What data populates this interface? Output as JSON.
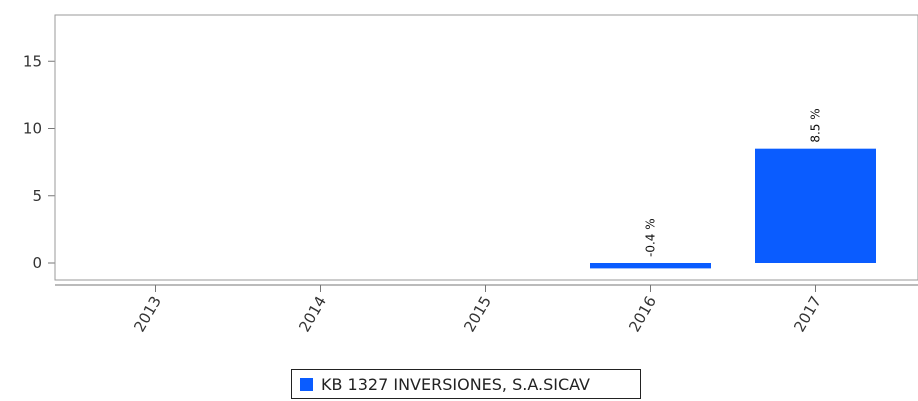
{
  "chart_data": {
    "type": "bar",
    "categories": [
      "2013",
      "2014",
      "2015",
      "2016",
      "2017"
    ],
    "series": [
      {
        "name": "KB 1327 INVERSIONES, S.A.SICAV",
        "values": [
          null,
          null,
          null,
          -0.4,
          8.5
        ],
        "color": "#0a5cff"
      }
    ],
    "data_labels": [
      "",
      "",
      "",
      "-0.4 %",
      "8.5 %"
    ],
    "ylim": [
      -1.5,
      18
    ],
    "yticks": [
      "0",
      "5",
      "10",
      "15"
    ],
    "grid": false,
    "legend_position": "bottom-center"
  }
}
